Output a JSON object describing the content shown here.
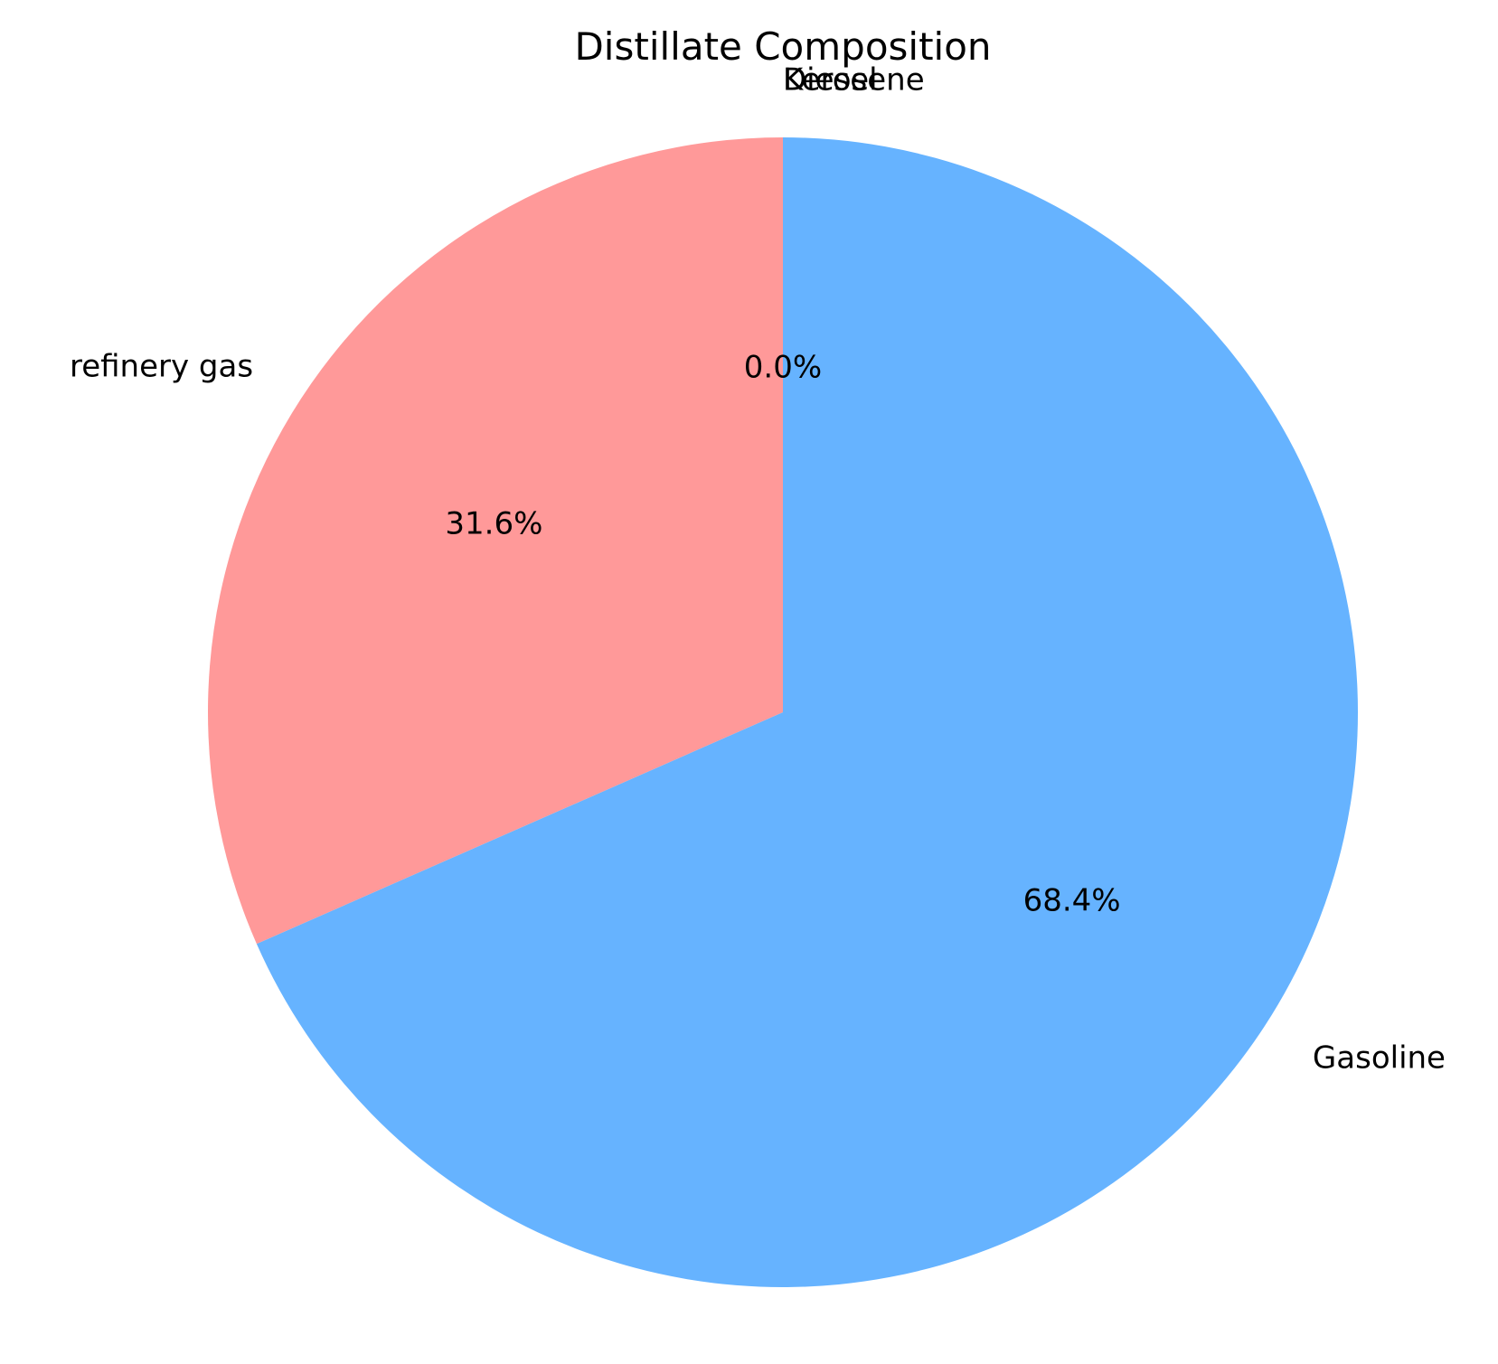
{
  "chart_data": {
    "type": "pie",
    "title": "Distillate Composition",
    "start_angle_deg": 90,
    "direction": "counterclockwise",
    "slices": [
      {
        "label": "Diesel",
        "value": 0.0,
        "pct_label": "",
        "color": "#66b3ff"
      },
      {
        "label": "Kerosene",
        "value": 0.0,
        "pct_label": "0.0%",
        "color": "#99ff99"
      },
      {
        "label": "refinery gas",
        "value": 31.6,
        "pct_label": "31.6%",
        "color": "#ff9999"
      },
      {
        "label": "Gasoline",
        "value": 68.4,
        "pct_label": "68.4%",
        "color": "#66b3ff"
      }
    ]
  }
}
